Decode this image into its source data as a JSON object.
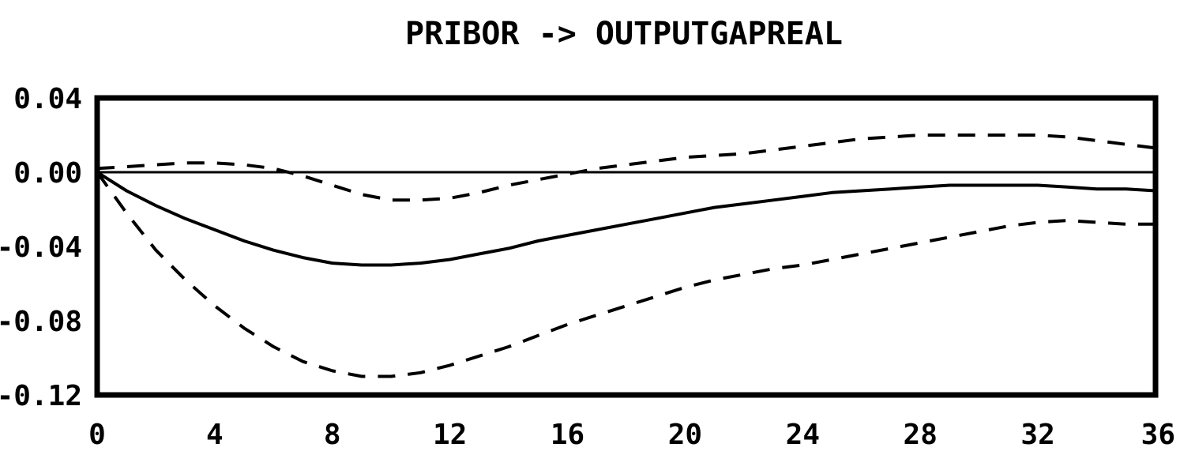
{
  "chart_data": {
    "type": "line",
    "title": "PRIBOR -> OUTPUTGAPREAL",
    "xlabel": "",
    "ylabel": "",
    "xlim": [
      0,
      36
    ],
    "ylim": [
      -0.12,
      0.04
    ],
    "x_ticks": [
      0,
      4,
      8,
      12,
      16,
      20,
      24,
      28,
      32,
      36
    ],
    "y_ticks": [
      0.04,
      0.0,
      -0.04,
      -0.08,
      -0.12
    ],
    "x_tick_labels": [
      "0",
      "4",
      "8",
      "12",
      "16",
      "20",
      "24",
      "28",
      "32",
      "36"
    ],
    "y_tick_labels": [
      "0.04",
      "0.00",
      "-0.04",
      "-0.08",
      "-0.12"
    ],
    "grid": false,
    "zero_line": true,
    "series": [
      {
        "style": "solid",
        "x": [
          0,
          1,
          2,
          3,
          4,
          5,
          6,
          7,
          8,
          9,
          10,
          11,
          12,
          13,
          14,
          15,
          16,
          17,
          18,
          19,
          20,
          21,
          22,
          23,
          24,
          25,
          26,
          27,
          28,
          29,
          30,
          31,
          32,
          33,
          34,
          35,
          36
        ],
        "y": [
          0.0,
          -0.01,
          -0.018,
          -0.025,
          -0.031,
          -0.037,
          -0.042,
          -0.046,
          -0.049,
          -0.05,
          -0.05,
          -0.049,
          -0.047,
          -0.044,
          -0.041,
          -0.037,
          -0.034,
          -0.031,
          -0.028,
          -0.025,
          -0.022,
          -0.019,
          -0.017,
          -0.015,
          -0.013,
          -0.011,
          -0.01,
          -0.009,
          -0.008,
          -0.007,
          -0.007,
          -0.007,
          -0.007,
          -0.008,
          -0.009,
          -0.009,
          -0.01
        ]
      },
      {
        "style": "dashed",
        "x": [
          0,
          1,
          2,
          3,
          4,
          5,
          6,
          7,
          8,
          9,
          10,
          11,
          12,
          13,
          14,
          15,
          16,
          17,
          18,
          19,
          20,
          21,
          22,
          23,
          24,
          25,
          26,
          27,
          28,
          29,
          30,
          31,
          32,
          33,
          34,
          35,
          36
        ],
        "y": [
          0.002,
          0.003,
          0.004,
          0.005,
          0.005,
          0.004,
          0.002,
          -0.002,
          -0.007,
          -0.012,
          -0.015,
          -0.015,
          -0.014,
          -0.011,
          -0.007,
          -0.004,
          -0.001,
          0.002,
          0.004,
          0.006,
          0.008,
          0.009,
          0.01,
          0.012,
          0.014,
          0.016,
          0.018,
          0.019,
          0.02,
          0.02,
          0.02,
          0.02,
          0.02,
          0.019,
          0.017,
          0.015,
          0.013
        ]
      },
      {
        "style": "dashed",
        "x": [
          0,
          1,
          2,
          3,
          4,
          5,
          6,
          7,
          8,
          9,
          10,
          11,
          12,
          13,
          14,
          15,
          16,
          17,
          18,
          19,
          20,
          21,
          22,
          23,
          24,
          25,
          26,
          27,
          28,
          29,
          30,
          31,
          32,
          33,
          34,
          35,
          36
        ],
        "y": [
          0.0,
          -0.022,
          -0.042,
          -0.058,
          -0.072,
          -0.084,
          -0.094,
          -0.102,
          -0.107,
          -0.11,
          -0.11,
          -0.108,
          -0.104,
          -0.099,
          -0.094,
          -0.088,
          -0.082,
          -0.077,
          -0.072,
          -0.067,
          -0.062,
          -0.058,
          -0.055,
          -0.052,
          -0.05,
          -0.047,
          -0.044,
          -0.041,
          -0.038,
          -0.035,
          -0.032,
          -0.029,
          -0.027,
          -0.026,
          -0.027,
          -0.028,
          -0.028
        ]
      }
    ]
  }
}
